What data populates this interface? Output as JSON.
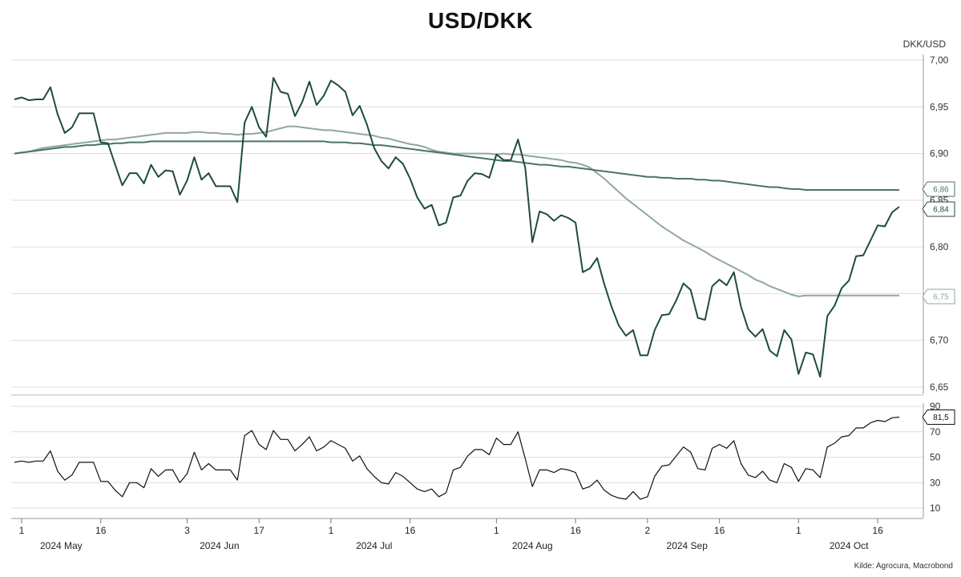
{
  "title": "USD/DKK",
  "unit": "DKK/USD",
  "source": "Kilde: Agrocura, Macrobond",
  "colors": {
    "price": "#1e4d3b",
    "ma_long": "#4a7464",
    "ma_short": "#8fa7a2",
    "rsi": "#111111",
    "grid": "#dcdcdc"
  },
  "x_axis": {
    "day_ticks": [
      {
        "i": 1,
        "label": "1"
      },
      {
        "i": 12,
        "label": "16"
      },
      {
        "i": 24,
        "label": "3"
      },
      {
        "i": 34,
        "label": "17"
      },
      {
        "i": 44,
        "label": "1"
      },
      {
        "i": 55,
        "label": "16"
      },
      {
        "i": 67,
        "label": "1"
      },
      {
        "i": 78,
        "label": "16"
      },
      {
        "i": 88,
        "label": "2"
      },
      {
        "i": 98,
        "label": "16"
      },
      {
        "i": 109,
        "label": "1"
      },
      {
        "i": 120,
        "label": "16"
      }
    ],
    "months": [
      {
        "at": 6.5,
        "label": "2024 May"
      },
      {
        "at": 28.5,
        "label": "2024 Jun"
      },
      {
        "at": 50,
        "label": "2024 Jul"
      },
      {
        "at": 72,
        "label": "2024 Aug"
      },
      {
        "at": 93.5,
        "label": "2024 Sep"
      },
      {
        "at": 116,
        "label": "2024 Oct"
      }
    ]
  },
  "chart_data": [
    {
      "type": "line",
      "title": "USD/DKK",
      "ylabel": "DKK/USD",
      "ylim": [
        6.65,
        7.0
      ],
      "yticks": [
        "6,65",
        "6,70",
        "6,75",
        "6,80",
        "6,85",
        "6,90",
        "6,95",
        "7,00"
      ],
      "last_value_flags": [
        "6,86",
        "6,84",
        "6,75"
      ],
      "series": [
        {
          "values": [
            6.958,
            6.96,
            6.957,
            6.958,
            6.958,
            6.971,
            6.942,
            6.922,
            6.928,
            6.943,
            6.943,
            6.943,
            6.912,
            6.911,
            6.888,
            6.866,
            6.879,
            6.879,
            6.868,
            6.888,
            6.875,
            6.882,
            6.881,
            6.856,
            6.871,
            6.896,
            6.872,
            6.879,
            6.865,
            6.865,
            6.865,
            6.848,
            6.933,
            6.95,
            6.928,
            6.918,
            6.981,
            6.966,
            6.964,
            6.94,
            6.955,
            6.977,
            6.952,
            6.962,
            6.978,
            6.973,
            6.966,
            6.941,
            6.951,
            6.931,
            6.906,
            6.892,
            6.884,
            6.896,
            6.889,
            6.873,
            6.853,
            6.841,
            6.845,
            6.823,
            6.826,
            6.853,
            6.855,
            6.871,
            6.879,
            6.878,
            6.874,
            6.899,
            6.893,
            6.893,
            6.915,
            6.885,
            6.805,
            6.838,
            6.835,
            6.828,
            6.834,
            6.831,
            6.826,
            6.773,
            6.777,
            6.788,
            6.76,
            6.736,
            6.716,
            6.705,
            6.711,
            6.684,
            6.684,
            6.711,
            6.727,
            6.728,
            6.743,
            6.761,
            6.754,
            6.724,
            6.722,
            6.758,
            6.765,
            6.759,
            6.773,
            6.736,
            6.712,
            6.704,
            6.712,
            6.689,
            6.683,
            6.711,
            6.701,
            6.664,
            6.687,
            6.685,
            6.661,
            6.726,
            6.737,
            6.756,
            6.764,
            6.79,
            6.791,
            6.807,
            6.823,
            6.822,
            6.837,
            6.843
          ]
        },
        {
          "values": [
            6.9,
            6.901,
            6.902,
            6.903,
            6.904,
            6.905,
            6.906,
            6.907,
            6.907,
            6.908,
            6.909,
            6.909,
            6.91,
            6.91,
            6.911,
            6.911,
            6.912,
            6.912,
            6.912,
            6.913,
            6.913,
            6.913,
            6.913,
            6.913,
            6.913,
            6.913,
            6.913,
            6.913,
            6.913,
            6.913,
            6.913,
            6.913,
            6.913,
            6.913,
            6.913,
            6.913,
            6.913,
            6.913,
            6.913,
            6.913,
            6.913,
            6.913,
            6.913,
            6.913,
            6.912,
            6.912,
            6.912,
            6.911,
            6.911,
            6.91,
            6.909,
            6.909,
            6.908,
            6.907,
            6.906,
            6.905,
            6.904,
            6.903,
            6.902,
            6.901,
            6.9,
            6.899,
            6.898,
            6.897,
            6.896,
            6.895,
            6.894,
            6.893,
            6.892,
            6.892,
            6.891,
            6.89,
            6.889,
            6.888,
            6.888,
            6.887,
            6.886,
            6.886,
            6.885,
            6.884,
            6.883,
            6.882,
            6.881,
            6.88,
            6.879,
            6.878,
            6.877,
            6.876,
            6.875,
            6.875,
            6.874,
            6.874,
            6.873,
            6.873,
            6.873,
            6.872,
            6.872,
            6.871,
            6.871,
            6.87,
            6.869,
            6.868,
            6.867,
            6.866,
            6.865,
            6.864,
            6.864,
            6.863,
            6.862,
            6.862,
            6.861,
            6.861,
            6.861,
            6.861,
            6.861,
            6.861,
            6.861,
            6.861,
            6.861,
            6.861,
            6.861,
            6.861,
            6.861,
            6.861
          ]
        },
        {
          "values": [
            6.9,
            6.901,
            6.902,
            6.904,
            6.906,
            6.907,
            6.908,
            6.909,
            6.91,
            6.911,
            6.912,
            6.913,
            6.914,
            6.915,
            6.915,
            6.916,
            6.917,
            6.918,
            6.919,
            6.92,
            6.921,
            6.922,
            6.922,
            6.922,
            6.922,
            6.923,
            6.923,
            6.922,
            6.922,
            6.921,
            6.921,
            6.92,
            6.921,
            6.921,
            6.922,
            6.923,
            6.925,
            6.927,
            6.929,
            6.929,
            6.928,
            6.927,
            6.926,
            6.925,
            6.925,
            6.924,
            6.923,
            6.922,
            6.921,
            6.92,
            6.919,
            6.917,
            6.916,
            6.914,
            6.912,
            6.91,
            6.909,
            6.907,
            6.904,
            6.902,
            6.901,
            6.9,
            6.9,
            6.9,
            6.9,
            6.9,
            6.9,
            6.899,
            6.9,
            6.899,
            6.899,
            6.898,
            6.897,
            6.896,
            6.895,
            6.894,
            6.893,
            6.891,
            6.89,
            6.888,
            6.885,
            6.879,
            6.873,
            6.866,
            6.859,
            6.852,
            6.846,
            6.84,
            6.834,
            6.828,
            6.822,
            6.817,
            6.812,
            6.807,
            6.803,
            6.799,
            6.795,
            6.79,
            6.786,
            6.782,
            6.778,
            6.774,
            6.77,
            6.765,
            6.762,
            6.758,
            6.755,
            6.752,
            6.749,
            6.747,
            6.748,
            6.748,
            6.748,
            6.748,
            6.748,
            6.748,
            6.748,
            6.748,
            6.748,
            6.748,
            6.748,
            6.748,
            6.748,
            6.748
          ]
        }
      ]
    },
    {
      "type": "line",
      "ylim": [
        5,
        90
      ],
      "yticks": [
        "10",
        "30",
        "50",
        "70",
        "90"
      ],
      "last_value_flags": [
        "81,5"
      ],
      "series": [
        {
          "values": [
            46,
            47,
            46,
            47,
            47,
            55,
            39,
            32,
            36,
            46,
            46,
            46,
            31,
            31,
            24,
            19,
            30,
            30,
            26,
            41,
            35,
            40,
            40,
            30,
            37,
            54,
            40,
            45,
            40,
            40,
            40,
            32,
            67,
            71,
            60,
            56,
            71,
            64,
            64,
            55,
            60,
            66,
            55,
            58,
            63,
            60,
            57,
            47,
            51,
            41,
            35,
            30,
            29,
            38,
            35,
            30,
            25,
            23,
            25,
            19,
            22,
            40,
            42,
            51,
            56,
            56,
            52,
            65,
            60,
            60,
            70,
            49,
            27,
            40,
            40,
            38,
            41,
            40,
            38,
            25,
            27,
            32,
            24,
            20,
            18,
            17,
            23,
            17,
            19,
            35,
            43,
            44,
            51,
            58,
            54,
            41,
            40,
            57,
            60,
            57,
            63,
            45,
            36,
            34,
            39,
            32,
            30,
            45,
            42,
            31,
            41,
            40,
            34,
            58,
            61,
            66,
            67,
            73,
            73,
            77,
            79,
            78,
            81,
            81.5
          ]
        }
      ]
    }
  ]
}
